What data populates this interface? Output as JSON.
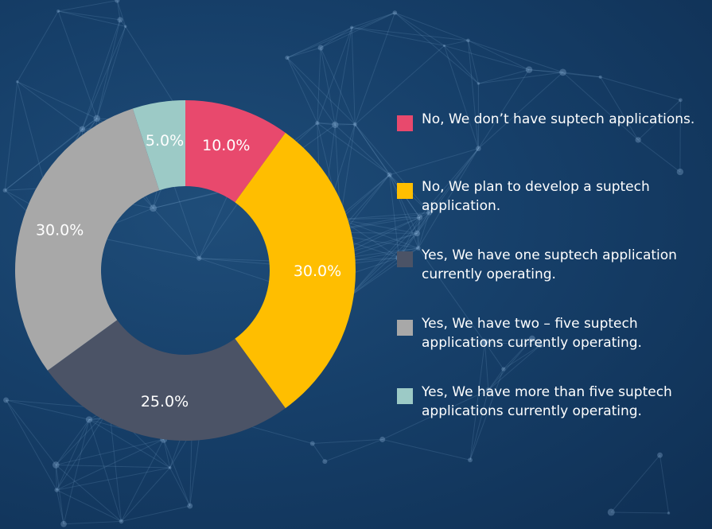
{
  "chart_data": {
    "type": "pie",
    "variant": "donut",
    "slices": [
      {
        "label": "No, We don’t have suptech applications.",
        "value": 10.0,
        "value_label": "10.0%",
        "color": "#e8496d",
        "label_color": "#ffffff"
      },
      {
        "label": "No, We plan to develop a suptech application.",
        "value": 30.0,
        "value_label": "30.0%",
        "color": "#ffbe00",
        "label_color": "#ffffff"
      },
      {
        "label": "Yes, We have one suptech application currently operating.",
        "value": 25.0,
        "value_label": "25.0%",
        "color": "#4b5366",
        "label_color": "#ffffff"
      },
      {
        "label": "Yes, We have two – five suptech applications currently operating.",
        "value": 30.0,
        "value_label": "30.0%",
        "color": "#a8a8a8",
        "label_color": "#ffffff"
      },
      {
        "label": "Yes, We have more than five suptech applications currently operating.",
        "value": 5.0,
        "value_label": "5.0%",
        "color": "#9ccac6",
        "label_color": "#ffffff"
      }
    ],
    "legend_position": "right"
  }
}
